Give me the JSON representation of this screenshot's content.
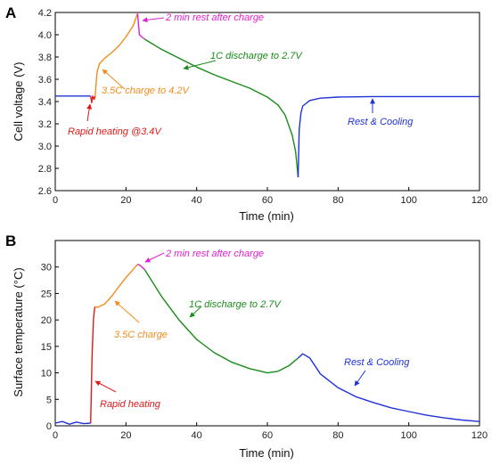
{
  "chart_data": [
    {
      "type": "line",
      "panel": "A",
      "xlabel": "Time (min)",
      "ylabel": "Cell voltage (V)",
      "xlim": [
        0,
        120
      ],
      "ylim": [
        2.6,
        4.2
      ],
      "xticks": [
        "0",
        "20",
        "40",
        "60",
        "80",
        "100",
        "120"
      ],
      "yticks": [
        "2.6",
        "2.8",
        "3.0",
        "3.2",
        "3.4",
        "3.6",
        "3.8",
        "4.0",
        "4.2"
      ],
      "grid": false,
      "series": [
        {
          "name": "",
          "color": "#1f32d6",
          "x": [
            0,
            5,
            10
          ],
          "y": [
            3.45,
            3.45,
            3.45
          ]
        },
        {
          "name": "",
          "color": "#e01818",
          "x": [
            10,
            10.3,
            10.6,
            11,
            11.3
          ],
          "y": [
            3.45,
            3.39,
            3.45,
            3.42,
            3.45
          ]
        },
        {
          "name": "",
          "color": "#f08c1e",
          "x": [
            11.3,
            11.8,
            12.5,
            14,
            16,
            18,
            20,
            22,
            23.3
          ],
          "y": [
            3.45,
            3.66,
            3.74,
            3.79,
            3.84,
            3.9,
            3.98,
            4.08,
            4.19
          ]
        },
        {
          "name": "",
          "color": "#e020d0",
          "x": [
            23.3,
            23.8,
            24.5,
            25.3
          ],
          "y": [
            4.19,
            4.0,
            3.98,
            3.96
          ]
        },
        {
          "name": "",
          "color": "#1a8c1a",
          "x": [
            25.3,
            30,
            35,
            40,
            45,
            50,
            55,
            60,
            63,
            65,
            67,
            68,
            68.7
          ],
          "y": [
            3.96,
            3.87,
            3.79,
            3.71,
            3.64,
            3.58,
            3.52,
            3.44,
            3.37,
            3.28,
            3.1,
            2.95,
            2.72
          ]
        },
        {
          "name": "",
          "color": "#1f32d6",
          "x": [
            68.7,
            69,
            69.5,
            70,
            72,
            75,
            80,
            90,
            100,
            110,
            120
          ],
          "y": [
            2.72,
            3.15,
            3.3,
            3.36,
            3.41,
            3.43,
            3.44,
            3.445,
            3.445,
            3.445,
            3.445
          ]
        }
      ],
      "annotations": [
        {
          "text": "Rapid heating @3.4V",
          "color": "#e01818"
        },
        {
          "text": "3.5C charge to 4.2V",
          "color": "#f08c1e"
        },
        {
          "text": "2 min rest after charge",
          "color": "#e020d0"
        },
        {
          "text": "1C discharge to 2.7V",
          "color": "#1a8c1a"
        },
        {
          "text": "Rest & Cooling",
          "color": "#1f32d6"
        }
      ]
    },
    {
      "type": "line",
      "panel": "B",
      "xlabel": "Time (min)",
      "ylabel": "Surface temperature (°C)",
      "xlim": [
        0,
        120
      ],
      "ylim": [
        0,
        35
      ],
      "xticks": [
        "0",
        "20",
        "40",
        "60",
        "80",
        "100",
        "120"
      ],
      "yticks": [
        "0",
        "5",
        "10",
        "15",
        "20",
        "25",
        "30"
      ],
      "grid": false,
      "series": [
        {
          "name": "",
          "color": "#1f32d6",
          "x": [
            0,
            2,
            4,
            6,
            8,
            10
          ],
          "y": [
            0.5,
            0.8,
            0.3,
            0.7,
            0.4,
            0.5
          ]
        },
        {
          "name": "",
          "color": "#e01818",
          "x": [
            10,
            10.4,
            10.8,
            11.2
          ],
          "y": [
            0.5,
            13,
            20,
            22.5
          ]
        },
        {
          "name": "",
          "color": "#f08c1e",
          "x": [
            11.2,
            12,
            14,
            16,
            18,
            20,
            22,
            23.3
          ],
          "y": [
            22.5,
            22.4,
            23,
            24.5,
            26.3,
            28,
            29.5,
            30.5
          ]
        },
        {
          "name": "",
          "color": "#e020d0",
          "x": [
            23.3,
            24,
            25.3
          ],
          "y": [
            30.5,
            30.3,
            29.5
          ]
        },
        {
          "name": "",
          "color": "#1a8c1a",
          "x": [
            25.3,
            30,
            35,
            40,
            45,
            50,
            55,
            60,
            63,
            66,
            68.7
          ],
          "y": [
            29.5,
            24.5,
            20,
            16.3,
            13.8,
            12,
            10.8,
            10,
            10.3,
            11.3,
            12.8
          ]
        },
        {
          "name": "",
          "color": "#1f32d6",
          "x": [
            68.7,
            70,
            72,
            75,
            80,
            85,
            90,
            95,
            100,
            105,
            110,
            115,
            120
          ],
          "y": [
            12.8,
            13.6,
            12.8,
            9.8,
            7.2,
            5.5,
            4.4,
            3.4,
            2.7,
            2.0,
            1.5,
            1.1,
            0.8
          ]
        }
      ],
      "annotations": [
        {
          "text": "Rapid heating",
          "color": "#e01818"
        },
        {
          "text": "3.5C charge",
          "color": "#f08c1e"
        },
        {
          "text": "2 min rest after charge",
          "color": "#e020d0"
        },
        {
          "text": "1C discharge to 2.7V",
          "color": "#1a8c1a"
        },
        {
          "text": "Rest & Cooling",
          "color": "#1f32d6"
        }
      ]
    }
  ]
}
